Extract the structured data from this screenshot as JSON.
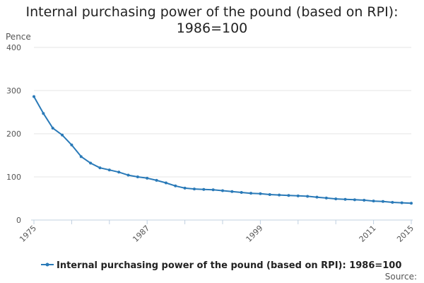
{
  "chart_data": {
    "type": "line",
    "title": "Internal purchasing power of the pound (based on RPI): 1986=100",
    "title_lines": [
      "Internal purchasing power of the pound (based on RPI):",
      "1986=100"
    ],
    "ylabel": "Pence",
    "ylim": [
      0,
      400
    ],
    "yticks": [
      0,
      100,
      200,
      300,
      400
    ],
    "xlim": [
      1975,
      2015
    ],
    "xticks": [
      1975,
      1987,
      1999,
      2011,
      2015
    ],
    "grid": "horizontal",
    "legend_position": "bottom",
    "source_label": "Source:",
    "series": [
      {
        "name": "Internal purchasing power of the pound (based on RPI): 1986=100",
        "color": "#2a7ab8",
        "x": [
          1975,
          1976,
          1977,
          1978,
          1979,
          1980,
          1981,
          1982,
          1983,
          1984,
          1985,
          1986,
          1987,
          1988,
          1989,
          1990,
          1991,
          1992,
          1993,
          1994,
          1995,
          1996,
          1997,
          1998,
          1999,
          2000,
          2001,
          2002,
          2003,
          2004,
          2005,
          2006,
          2007,
          2008,
          2009,
          2010,
          2011,
          2012,
          2013,
          2014,
          2015
        ],
        "values": [
          286,
          247,
          213,
          197,
          174,
          147,
          132,
          121,
          116,
          111,
          104,
          100,
          97,
          92,
          86,
          79,
          74,
          72,
          71,
          70,
          68,
          66,
          64,
          62,
          61,
          59,
          58,
          57,
          56,
          55,
          53,
          51,
          49,
          48,
          47,
          46,
          44,
          43,
          41,
          40,
          39
        ]
      }
    ]
  }
}
